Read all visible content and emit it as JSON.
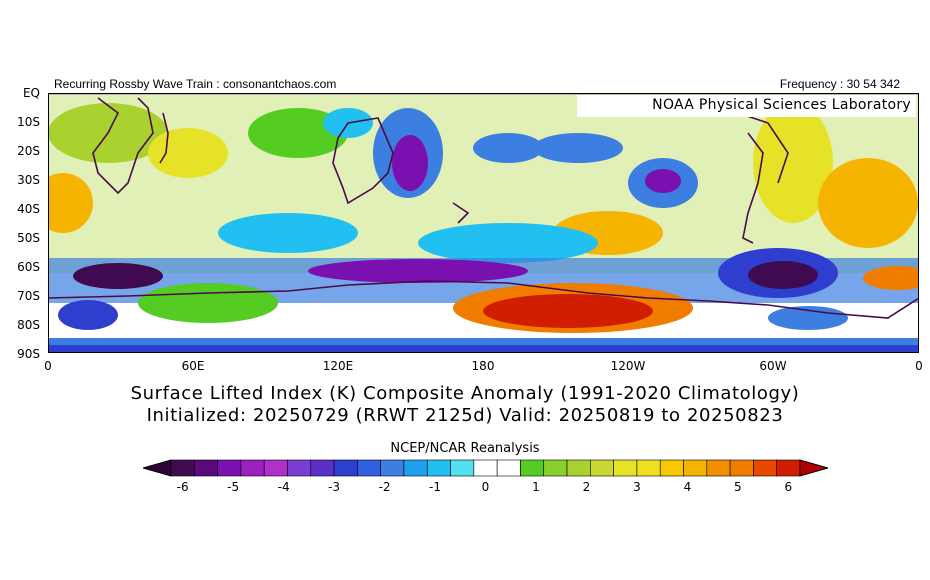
{
  "header": {
    "left_text": "Recurring Rossby Wave Train : consonantchaos.com",
    "right_text": "Frequency : 30 54 342"
  },
  "map": {
    "credit": "NOAA Physical Sciences Laboratory",
    "lat_labels": [
      "EQ",
      "10S",
      "20S",
      "30S",
      "40S",
      "50S",
      "60S",
      "70S",
      "80S",
      "90S"
    ],
    "lon_labels": [
      "0",
      "60E",
      "120E",
      "180",
      "120W",
      "60W",
      "0"
    ],
    "colors": {
      "coast": "#4a0a4a",
      "m6": "#3f0a4f",
      "m5": "#7a10b0",
      "m4": "#7a3fd0",
      "m3": "#2e3fd0",
      "m2": "#3c7fe0",
      "m1": "#22c0f0",
      "zero": "#ffffff",
      "p1": "#55cc22",
      "p2": "#aad22f",
      "p3": "#e6e228",
      "p4": "#f5b400",
      "p5": "#f07d00",
      "p6": "#d21e00"
    }
  },
  "title": {
    "line1": "Surface Lifted Index (K) Composite Anomaly (1991-2020 Climatology)",
    "line2": "Initialized: 20250729 (RRWT 2125d) Valid: 20250819 to 20250823"
  },
  "colorbar": {
    "source": "NCEP/NCAR Reanalysis",
    "tick_labels": [
      "-6",
      "-5",
      "-4",
      "-3",
      "-2",
      "-1",
      "0",
      "1",
      "2",
      "3",
      "4",
      "5",
      "6"
    ],
    "bins": [
      "#3f0a4f",
      "#5b0a7a",
      "#7a10b0",
      "#9a20c0",
      "#b030c8",
      "#7a3fd0",
      "#5a30c8",
      "#2e3fd0",
      "#3060e0",
      "#3c7fe0",
      "#22a0f0",
      "#22c0f0",
      "#55e0f0",
      "#ffffff",
      "#ffffff",
      "#55cc22",
      "#88d030",
      "#aad22f",
      "#c8d830",
      "#e6e228",
      "#f0e020",
      "#f5c800",
      "#f5b400",
      "#f09000",
      "#f07d00",
      "#e84800",
      "#d21e00"
    ]
  }
}
